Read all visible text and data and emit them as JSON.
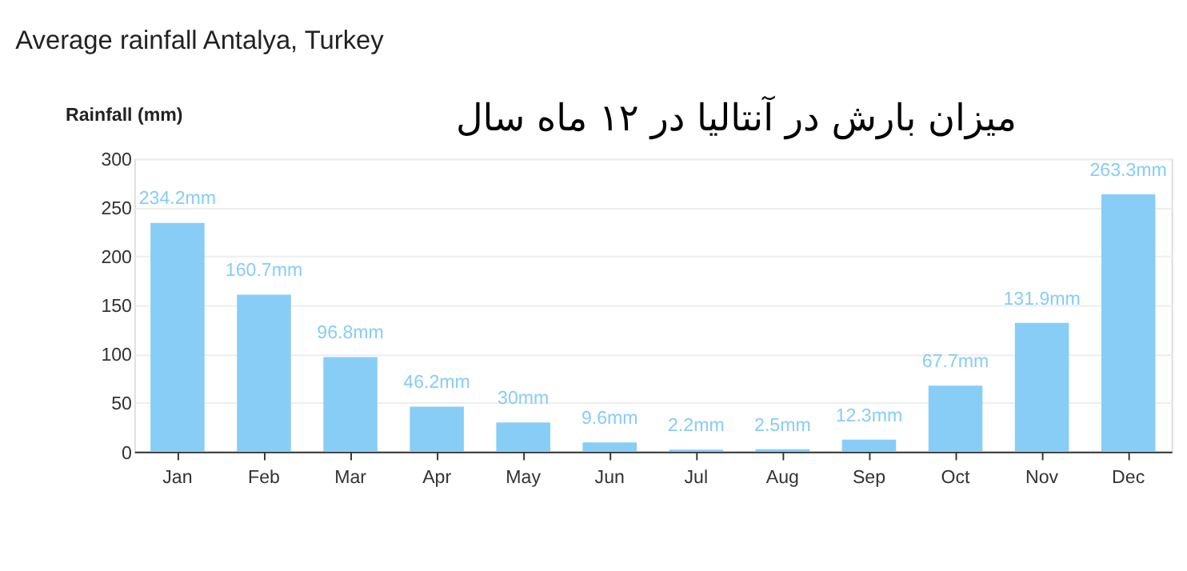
{
  "chart_data": {
    "type": "bar",
    "title": "Average rainfall Antalya, Turkey",
    "subtitle": "میزان بارش در آنتالیا در ۱۲ ماه سال",
    "ylabel": "Rainfall (mm)",
    "categories": [
      "Jan",
      "Feb",
      "Mar",
      "Apr",
      "May",
      "Jun",
      "Jul",
      "Aug",
      "Sep",
      "Oct",
      "Nov",
      "Dec"
    ],
    "values": [
      234.2,
      160.7,
      96.8,
      46.2,
      30,
      9.6,
      2.2,
      2.5,
      12.3,
      67.7,
      131.9,
      263.3
    ],
    "value_labels": [
      "234.2mm",
      "160.7mm",
      "96.8mm",
      "46.2mm",
      "30mm",
      "9.6mm",
      "2.2mm",
      "2.5mm",
      "12.3mm",
      "67.7mm",
      "131.9mm",
      "263.3mm"
    ],
    "color": "#88cdf6",
    "ylim": [
      0,
      300
    ],
    "yticks": [
      0,
      50,
      100,
      150,
      200,
      250,
      300
    ],
    "grid": "y"
  }
}
